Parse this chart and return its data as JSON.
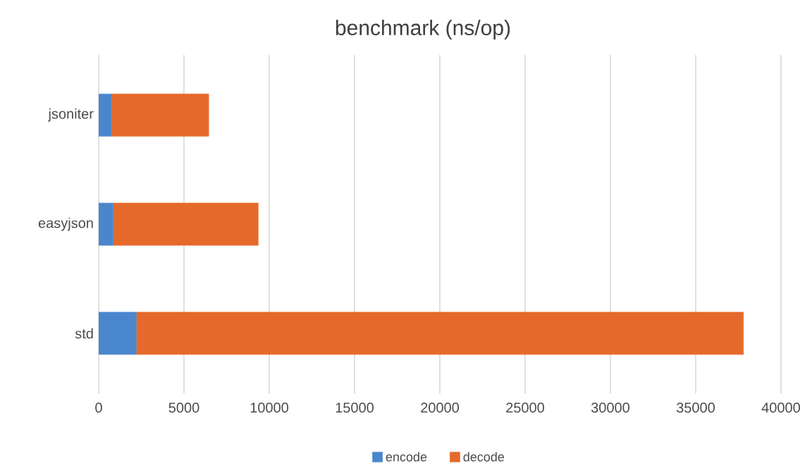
{
  "chart_data": {
    "type": "bar",
    "title": "benchmark (ns/op)",
    "orientation": "horizontal",
    "stacked": true,
    "categories": [
      "jsoniter",
      "easyjson",
      "std"
    ],
    "series": [
      {
        "name": "encode",
        "color": "#4a86cc",
        "values": [
          750,
          850,
          2200
        ]
      },
      {
        "name": "decode",
        "color": "#e5692a",
        "values": [
          5700,
          8500,
          35600
        ]
      }
    ],
    "xlim": [
      0,
      40000
    ],
    "xticks": [
      0,
      5000,
      10000,
      15000,
      20000,
      25000,
      30000,
      35000,
      40000
    ],
    "grid": "x",
    "legend": "bottom"
  }
}
